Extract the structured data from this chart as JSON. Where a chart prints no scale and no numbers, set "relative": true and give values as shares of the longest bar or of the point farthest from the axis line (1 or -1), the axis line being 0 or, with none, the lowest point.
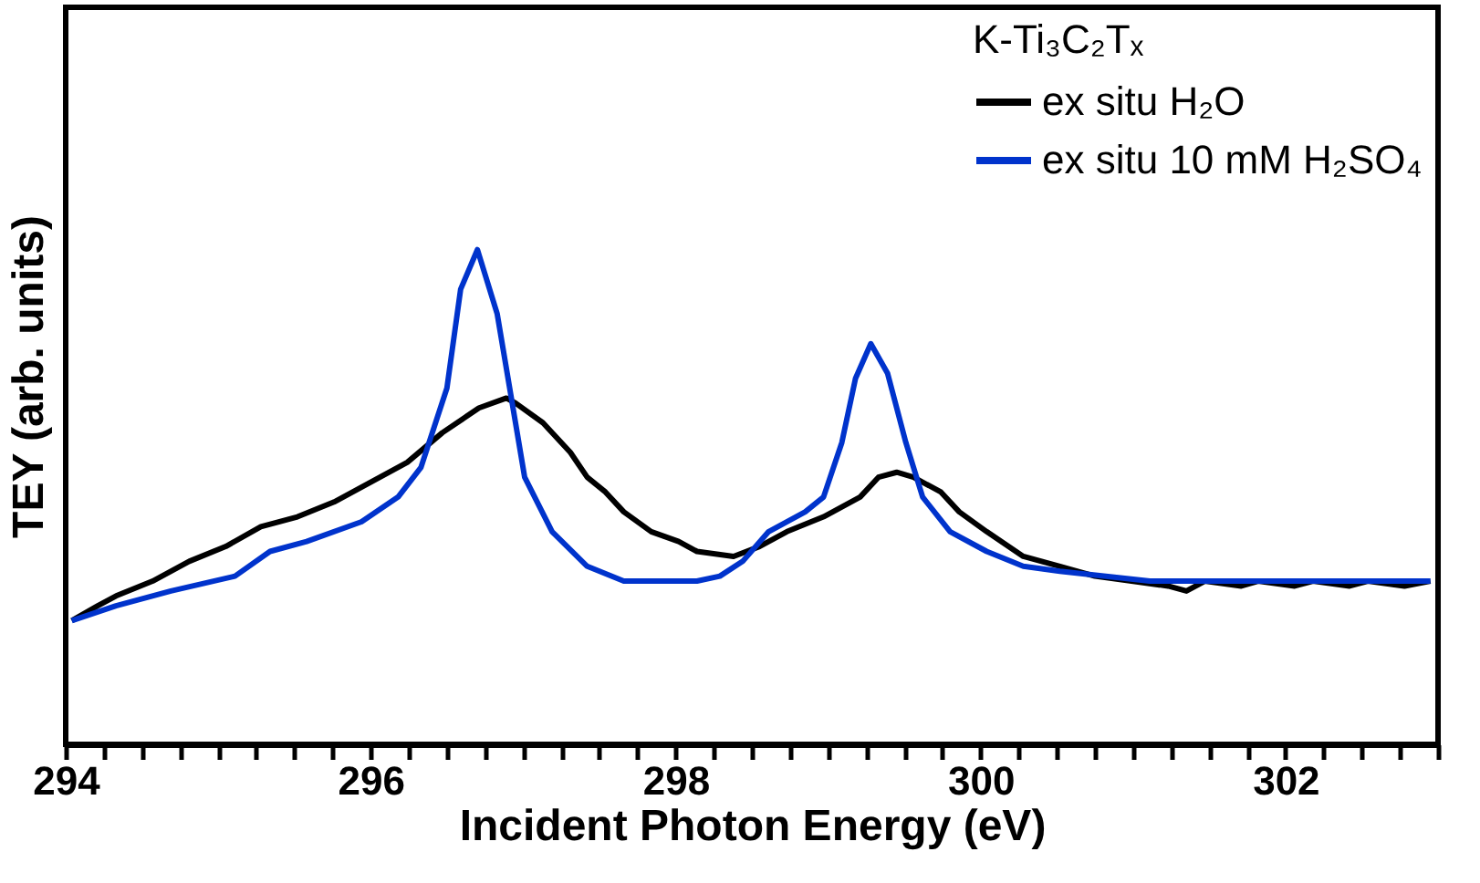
{
  "chart_data": {
    "type": "line",
    "relative": true,
    "xlabel": "Incident Photon Energy (eV)",
    "ylabel": "TEY (arb. units)",
    "legend_title": "K-Ti₃C₂Tₓ",
    "legend": "top right",
    "grid": false,
    "line_style": "solid",
    "marker": "none",
    "xlim": [
      294,
      303
    ],
    "xticks": [
      294,
      {
        "value": 294.25,
        "label": null
      },
      {
        "value": 294.5,
        "label": null
      },
      {
        "value": 294.75,
        "label": null
      },
      {
        "value": 295,
        "label": null
      },
      {
        "value": 295.25,
        "label": null
      },
      {
        "value": 295.5,
        "label": null
      },
      {
        "value": 295.75,
        "label": null
      },
      296,
      {
        "value": 296.25,
        "label": null
      },
      {
        "value": 296.5,
        "label": null
      },
      {
        "value": 296.75,
        "label": null
      },
      {
        "value": 297,
        "label": null
      },
      {
        "value": 297.25,
        "label": null
      },
      {
        "value": 297.5,
        "label": null
      },
      {
        "value": 297.75,
        "label": null
      },
      298,
      {
        "value": 298.25,
        "label": null
      },
      {
        "value": 298.5,
        "label": null
      },
      {
        "value": 298.75,
        "label": null
      },
      {
        "value": 299,
        "label": null
      },
      {
        "value": 299.25,
        "label": null
      },
      {
        "value": 299.5,
        "label": null
      },
      {
        "value": 299.75,
        "label": null
      },
      300,
      {
        "value": 300.25,
        "label": null
      },
      {
        "value": 300.5,
        "label": null
      },
      {
        "value": 300.75,
        "label": null
      },
      {
        "value": 301,
        "label": null
      },
      {
        "value": 301.25,
        "label": null
      },
      {
        "value": 301.5,
        "label": null
      },
      {
        "value": 301.75,
        "label": null
      },
      302,
      {
        "value": 302.25,
        "label": null
      },
      {
        "value": 302.5,
        "label": null
      },
      {
        "value": 302.75,
        "label": null
      },
      {
        "value": 303,
        "label": null
      }
    ],
    "series": [
      {
        "name": "ex situ H₂O",
        "color": "#000000",
        "x": [
          294.04,
          294.21,
          294.33,
          294.57,
          294.81,
          295.05,
          295.28,
          295.52,
          295.76,
          296.0,
          296.24,
          296.47,
          296.71,
          296.89,
          296.95,
          297.13,
          297.31,
          297.42,
          297.54,
          297.66,
          297.84,
          298.02,
          298.14,
          298.38,
          298.55,
          298.73,
          298.97,
          299.21,
          299.33,
          299.45,
          299.56,
          299.74,
          299.86,
          300.04,
          300.28,
          300.52,
          300.75,
          300.99,
          301.23,
          301.35,
          301.47,
          301.71,
          301.82,
          302.06,
          302.18,
          302.42,
          302.54,
          302.78,
          302.95
        ],
        "values": [
          0.25,
          0.28,
          0.3,
          0.33,
          0.37,
          0.4,
          0.44,
          0.46,
          0.49,
          0.53,
          0.57,
          0.63,
          0.68,
          0.7,
          0.69,
          0.65,
          0.59,
          0.54,
          0.51,
          0.47,
          0.43,
          0.41,
          0.39,
          0.38,
          0.4,
          0.43,
          0.46,
          0.5,
          0.54,
          0.55,
          0.54,
          0.51,
          0.47,
          0.43,
          0.38,
          0.36,
          0.34,
          0.33,
          0.32,
          0.31,
          0.33,
          0.32,
          0.33,
          0.32,
          0.33,
          0.32,
          0.33,
          0.32,
          0.33
        ]
      },
      {
        "name": "ex situ 10 mM H₂SO₄",
        "color": "#0033cc",
        "x": [
          294.04,
          294.33,
          294.69,
          295.11,
          295.34,
          295.58,
          295.94,
          296.18,
          296.33,
          296.5,
          296.59,
          296.7,
          296.83,
          296.95,
          297.01,
          297.19,
          297.42,
          297.66,
          297.9,
          298.14,
          298.29,
          298.44,
          298.61,
          298.85,
          298.97,
          299.09,
          299.18,
          299.28,
          299.39,
          299.51,
          299.62,
          299.8,
          300.04,
          300.28,
          300.52,
          301.11,
          301.71,
          302.95
        ],
        "values": [
          0.25,
          0.28,
          0.31,
          0.34,
          0.39,
          0.41,
          0.45,
          0.5,
          0.56,
          0.72,
          0.92,
          1.0,
          0.87,
          0.65,
          0.54,
          0.43,
          0.36,
          0.33,
          0.33,
          0.33,
          0.34,
          0.37,
          0.43,
          0.47,
          0.5,
          0.61,
          0.74,
          0.81,
          0.75,
          0.61,
          0.5,
          0.43,
          0.39,
          0.36,
          0.35,
          0.33,
          0.33,
          0.33
        ]
      }
    ]
  }
}
